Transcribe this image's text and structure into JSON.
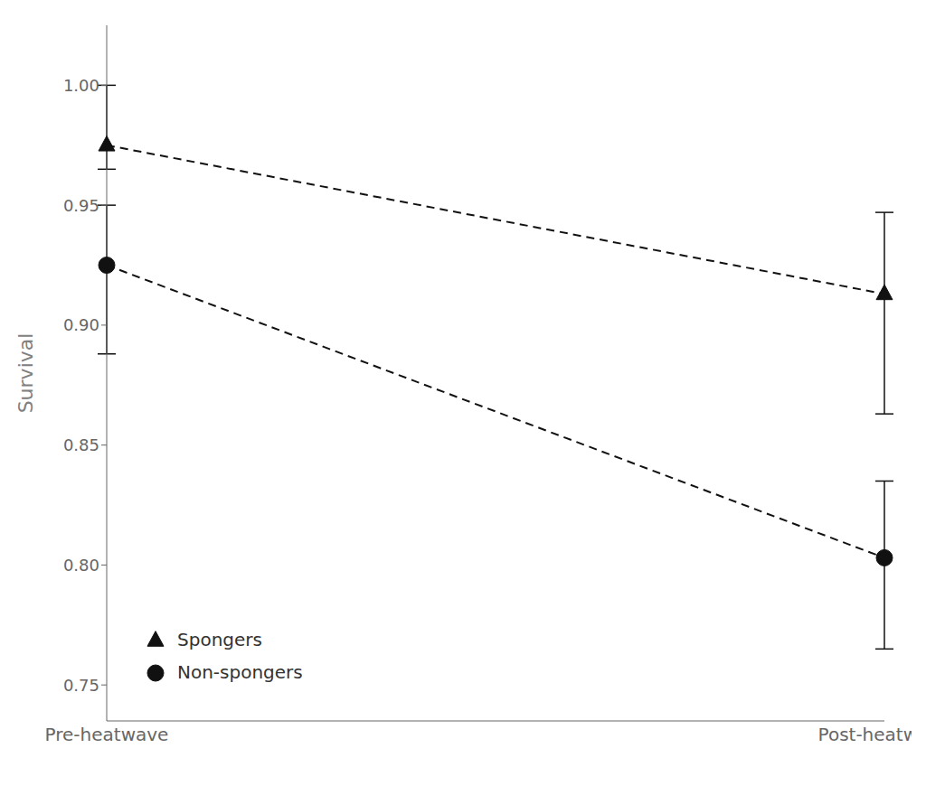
{
  "chart_data": {
    "type": "line",
    "categories": [
      "Pre-heatwave",
      "Post-heatwave"
    ],
    "series": [
      {
        "name": "Spongers",
        "color": "#111111",
        "marker": "triangle",
        "line_style": "dashed",
        "values": [
          0.975,
          0.913
        ],
        "error_low": [
          0.01,
          0.05
        ],
        "error_high": [
          0.025,
          0.034
        ]
      },
      {
        "name": "Non-spongers",
        "color": "#111111",
        "marker": "circle",
        "line_style": "dashed",
        "values": [
          0.925,
          0.803
        ],
        "error_low": [
          0.037,
          0.038
        ],
        "error_high": [
          0.025,
          0.032
        ]
      }
    ],
    "ylabel": "Survival",
    "ylim": [
      0.735,
      1.025
    ],
    "yticks": [
      0.75,
      {
        "value": 0.8,
        "label": "0.80"
      },
      0.85,
      {
        "value": 0.9,
        "label": "0.90"
      },
      0.95,
      {
        "value": 1.0,
        "label": "1.00"
      }
    ],
    "grid": false,
    "legend": "lower left"
  }
}
